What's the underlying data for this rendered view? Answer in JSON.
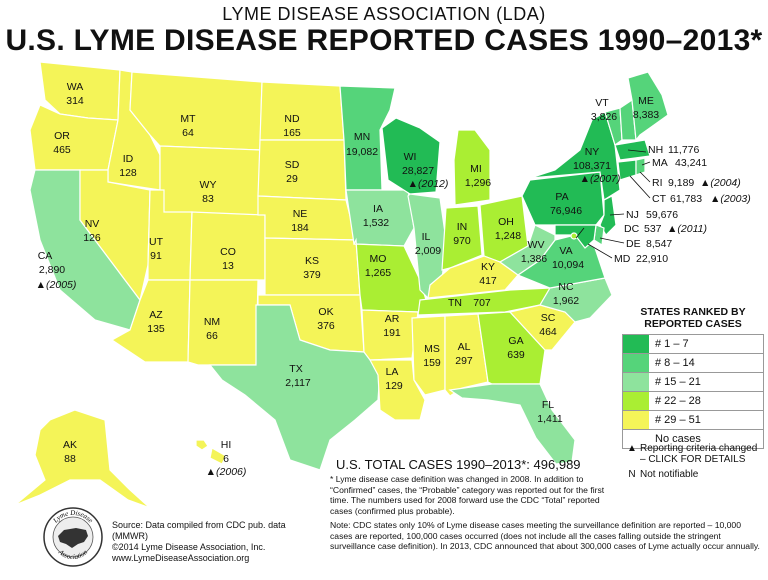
{
  "header": {
    "organization": "LYME DISEASE ASSOCIATION (LDA)",
    "title": "U.S. LYME DISEASE REPORTED CASES 1990–2013*"
  },
  "colors": {
    "rank_1_7": "#22bb55",
    "rank_8_14": "#55d47a",
    "rank_15_21": "#8ee39d",
    "rank_22_28": "#aaee33",
    "rank_29_51": "#f4f458",
    "no_cases": "#ffffff"
  },
  "states": {
    "WA": {
      "abbr": "WA",
      "value": "314"
    },
    "OR": {
      "abbr": "OR",
      "value": "465"
    },
    "CA": {
      "abbr": "CA",
      "value": "2,890",
      "note": "▲(2005)"
    },
    "ID": {
      "abbr": "ID",
      "value": "128"
    },
    "NV": {
      "abbr": "NV",
      "value": "126"
    },
    "MT": {
      "abbr": "MT",
      "value": "64"
    },
    "WY": {
      "abbr": "WY",
      "value": "83"
    },
    "UT": {
      "abbr": "UT",
      "value": "91"
    },
    "CO": {
      "abbr": "CO",
      "value": "13"
    },
    "AZ": {
      "abbr": "AZ",
      "value": "135"
    },
    "NM": {
      "abbr": "NM",
      "value": "66"
    },
    "ND": {
      "abbr": "ND",
      "value": "165"
    },
    "SD": {
      "abbr": "SD",
      "value": "29"
    },
    "NE": {
      "abbr": "NE",
      "value": "184"
    },
    "KS": {
      "abbr": "KS",
      "value": "379"
    },
    "OK": {
      "abbr": "OK",
      "value": "376"
    },
    "TX": {
      "abbr": "TX",
      "value": "2,117"
    },
    "MN": {
      "abbr": "MN",
      "value": "19,082"
    },
    "IA": {
      "abbr": "IA",
      "value": "1,532"
    },
    "MO": {
      "abbr": "MO",
      "value": "1,265"
    },
    "AR": {
      "abbr": "AR",
      "value": "191"
    },
    "LA": {
      "abbr": "LA",
      "value": "129"
    },
    "WI": {
      "abbr": "WI",
      "value": "28,827",
      "note": "▲(2012)"
    },
    "IL": {
      "abbr": "IL",
      "value": "2,009"
    },
    "MI": {
      "abbr": "MI",
      "value": "1,296"
    },
    "IN": {
      "abbr": "IN",
      "value": "970"
    },
    "OH": {
      "abbr": "OH",
      "value": "1,248"
    },
    "KY": {
      "abbr": "KY",
      "value": "417"
    },
    "TN": {
      "abbr": "TN",
      "value": "707"
    },
    "MS": {
      "abbr": "MS",
      "value": "159"
    },
    "AL": {
      "abbr": "AL",
      "value": "297"
    },
    "GA": {
      "abbr": "GA",
      "value": "639"
    },
    "FL": {
      "abbr": "FL",
      "value": "1,411"
    },
    "SC": {
      "abbr": "SC",
      "value": "464"
    },
    "NC": {
      "abbr": "NC",
      "value": "1,962"
    },
    "VA": {
      "abbr": "VA",
      "value": "10,094"
    },
    "WV": {
      "abbr": "WV",
      "value": "1,386"
    },
    "PA": {
      "abbr": "PA",
      "value": "76,946"
    },
    "NY": {
      "abbr": "NY",
      "value": "108,371",
      "note": "▲(2007)"
    },
    "VT": {
      "abbr": "VT",
      "value": "3,826"
    },
    "ME": {
      "abbr": "ME",
      "value": "8,383"
    },
    "NH": {
      "abbr": "NH",
      "value": "11,776"
    },
    "MA": {
      "abbr": "MA",
      "value": "43,241"
    },
    "RI": {
      "abbr": "RI",
      "value": "9,189",
      "note": "▲(2004)"
    },
    "CT": {
      "abbr": "CT",
      "value": "61,783",
      "note": "▲(2003)"
    },
    "NJ": {
      "abbr": "NJ",
      "value": "59,676"
    },
    "DC": {
      "abbr": "DC",
      "value": "537",
      "note": "▲(2011)"
    },
    "DE": {
      "abbr": "DE",
      "value": "8,547"
    },
    "MD": {
      "abbr": "MD",
      "value": "22,910"
    },
    "AK": {
      "abbr": "AK",
      "value": "88"
    },
    "HI": {
      "abbr": "HI",
      "value": "6",
      "note": "▲(2006)"
    }
  },
  "legend": {
    "title": "STATES RANKED BY REPORTED CASES",
    "items": [
      {
        "label": "# 1 – 7"
      },
      {
        "label": "# 8 – 14"
      },
      {
        "label": "# 15 – 21"
      },
      {
        "label": "# 22 – 28"
      },
      {
        "label": "# 29 – 51"
      },
      {
        "label": "No cases"
      }
    ]
  },
  "key": {
    "triangle_symbol": "▲",
    "triangle_text": "Reporting criteria changed – CLICK FOR DETAILS",
    "n_symbol": "N",
    "n_text": "Not notifiable"
  },
  "total": {
    "label": "U.S. TOTAL CASES 1990–2013*:",
    "value": "496,989"
  },
  "notes": {
    "asterisk_note": "* Lyme disease case definition was changed in 2008. In addition to “Confirmed” cases, the “Probable” category was reported out for the first time. The numbers used for 2008 forward use the CDC “Total” reported cases (confirmed plus probable).",
    "cdc_note": "Note: CDC states only 10% of Lyme disease cases meeting the surveillance definition are reported – 10,000 cases are reported, 100,000 cases occurred (does not include all the cases falling outside the stringent surveillance case definition). In 2013, CDC announced that about 300,000 cases of Lyme actually occur annually."
  },
  "source": {
    "line1": "Source: Data compiled from CDC pub. data (MMWR)",
    "line2": "©2014 Lyme Disease Association, Inc.",
    "line3": "www.LymeDiseaseAssociation.org"
  },
  "logo": {
    "text_top": "Lyme Disease",
    "text_bottom": "Association"
  }
}
